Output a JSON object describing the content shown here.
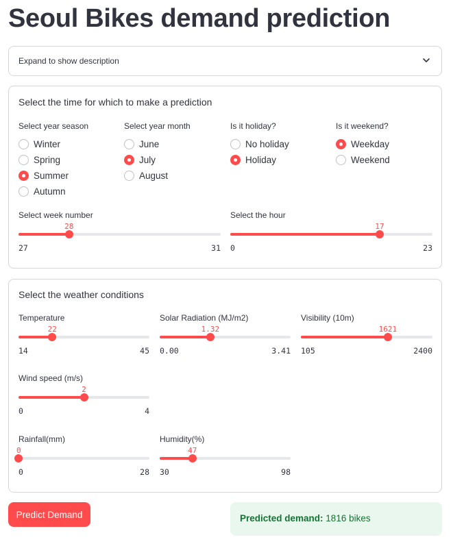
{
  "title": "Seoul Bikes demand prediction",
  "expander": {
    "label": "Expand to show description",
    "icon": "chevron-down-icon"
  },
  "time_section": {
    "title": "Select the time for which to make a prediction",
    "season": {
      "label": "Select year season",
      "options": [
        "Winter",
        "Spring",
        "Summer",
        "Autumn"
      ],
      "selected": "Summer"
    },
    "month": {
      "label": "Select year month",
      "options": [
        "June",
        "July",
        "August"
      ],
      "selected": "July"
    },
    "holiday": {
      "label": "Is it holiday?",
      "options": [
        "No holiday",
        "Holiday"
      ],
      "selected": "Holiday"
    },
    "weekend": {
      "label": "Is it weekend?",
      "options": [
        "Weekday",
        "Weekend"
      ],
      "selected": "Weekday"
    },
    "week": {
      "label": "Select week number",
      "value": "28",
      "min": "27",
      "max": "31",
      "fraction": 0.25
    },
    "hour": {
      "label": "Select the hour",
      "value": "17",
      "min": "0",
      "max": "23",
      "fraction": 0.739
    }
  },
  "weather_section": {
    "title": "Select the weather conditions",
    "temperature": {
      "label": "Temperature",
      "value": "22",
      "min": "14",
      "max": "45",
      "fraction": 0.258
    },
    "solar": {
      "label": "Solar Radiation (MJ/m2)",
      "value": "1.32",
      "min": "0.00",
      "max": "3.41",
      "fraction": 0.387
    },
    "visibility": {
      "label": "Visibility (10m)",
      "value": "1621",
      "min": "105",
      "max": "2400",
      "fraction": 0.661
    },
    "wind": {
      "label": "Wind speed (m/s)",
      "value": "2",
      "min": "0",
      "max": "4",
      "fraction": 0.5
    },
    "rainfall": {
      "label": "Rainfall(mm)",
      "value": "0",
      "min": "0",
      "max": "28",
      "fraction": 0.0
    },
    "humidity": {
      "label": "Humidity(%)",
      "value": "47",
      "min": "30",
      "max": "98",
      "fraction": 0.25
    }
  },
  "predict_button": {
    "label": "Predict Demand"
  },
  "result": {
    "key": "Predicted demand:",
    "value": "1816 bikes"
  },
  "colors": {
    "accent": "#ff4b4b",
    "success_bg": "#e9f7ee",
    "success_text": "#177233",
    "text": "#31333f"
  }
}
